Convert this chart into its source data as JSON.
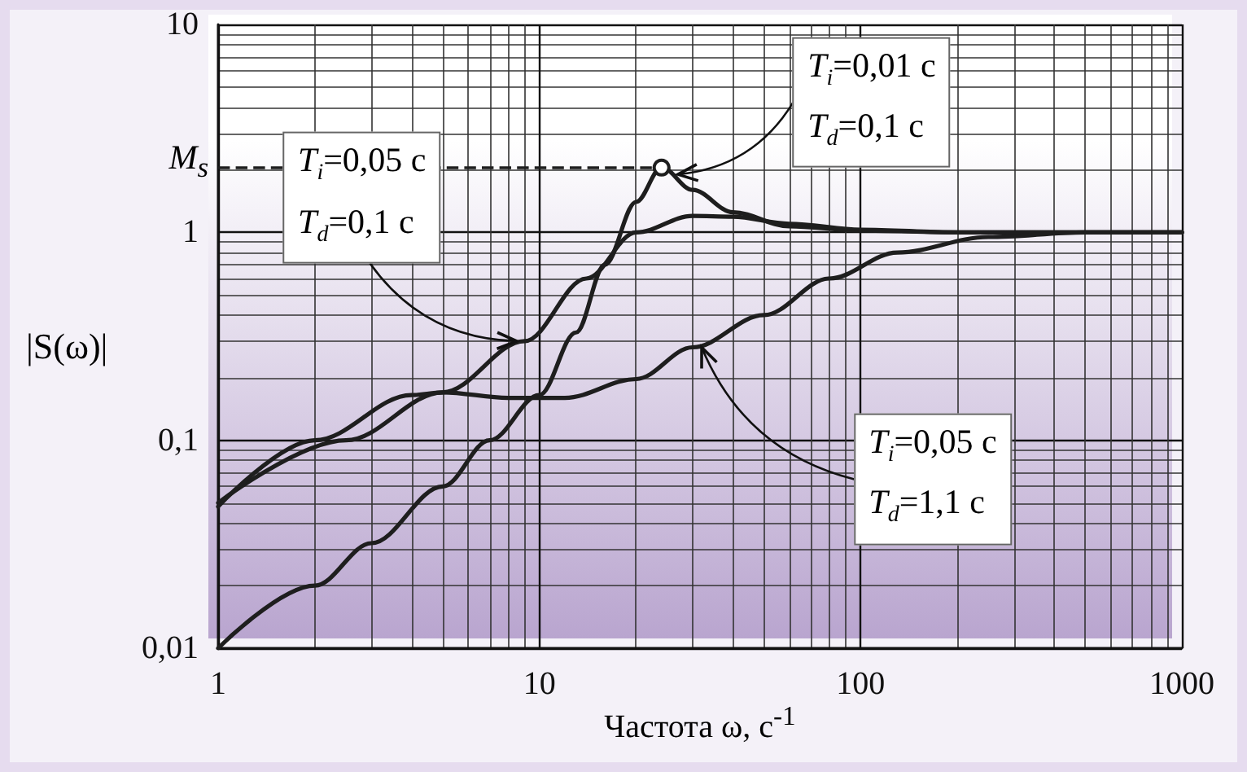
{
  "chart_data": {
    "type": "line",
    "xlabel": "Частота ω, с$^{-1}$",
    "ylabel": "|S(ω)|",
    "log": "xy",
    "grid": true,
    "marker": "none",
    "line_style": "solid",
    "xlim": [
      1,
      1000
    ],
    "xticks": [
      1,
      10,
      100,
      1000
    ],
    "ylim": [
      0.01,
      10
    ],
    "yticks": [
      {
        "value": 0.01,
        "label": "0,01"
      },
      {
        "value": 0.1,
        "label": "0,1"
      },
      1,
      10
    ],
    "series": [
      {
        "color": "#1e1e1e",
        "x": [
          1,
          2,
          3,
          5,
          7,
          10,
          13,
          16,
          20,
          24,
          30,
          40,
          60,
          100,
          200,
          1000
        ],
        "values": [
          0.01,
          0.02,
          0.032,
          0.06,
          0.1,
          0.165,
          0.33,
          0.7,
          1.4,
          2.05,
          1.6,
          1.25,
          1.07,
          1.02,
          1.0,
          1.0
        ]
      },
      {
        "color": "#1e1e1e",
        "x": [
          1,
          2.5,
          5,
          9,
          14,
          20,
          30,
          40,
          60,
          100,
          200,
          1000
        ],
        "values": [
          0.05,
          0.1,
          0.17,
          0.3,
          0.6,
          1.0,
          1.2,
          1.19,
          1.1,
          1.03,
          1.0,
          1.0
        ]
      },
      {
        "color": "#1e1e1e",
        "x": [
          1,
          2,
          4,
          5,
          8,
          12,
          20,
          30,
          50,
          80,
          130,
          250,
          500,
          1000
        ],
        "values": [
          0.048,
          0.1,
          0.165,
          0.17,
          0.16,
          0.16,
          0.197,
          0.28,
          0.4,
          0.6,
          0.8,
          0.95,
          1.0,
          1.0
        ]
      }
    ],
    "ref_lines": [
      {
        "axis": "y",
        "value": 2.05,
        "label": "M$_{s}$",
        "line_style": "dashed",
        "color": "#1e1e1e"
      }
    ],
    "annotations": [
      {
        "text": "T$_{i}$=0,01 с\nT$_{d}$=0,1 с",
        "x": 27,
        "y": 1.9
      },
      {
        "text": "T$_{i}$=0,05 с\nT$_{d}$=0,1 с",
        "x": 8.5,
        "y": 0.3
      },
      {
        "text": "T$_{i}$=0,05 с\nT$_{d}$=1,1 с",
        "x": 32,
        "y": 0.28
      }
    ]
  }
}
